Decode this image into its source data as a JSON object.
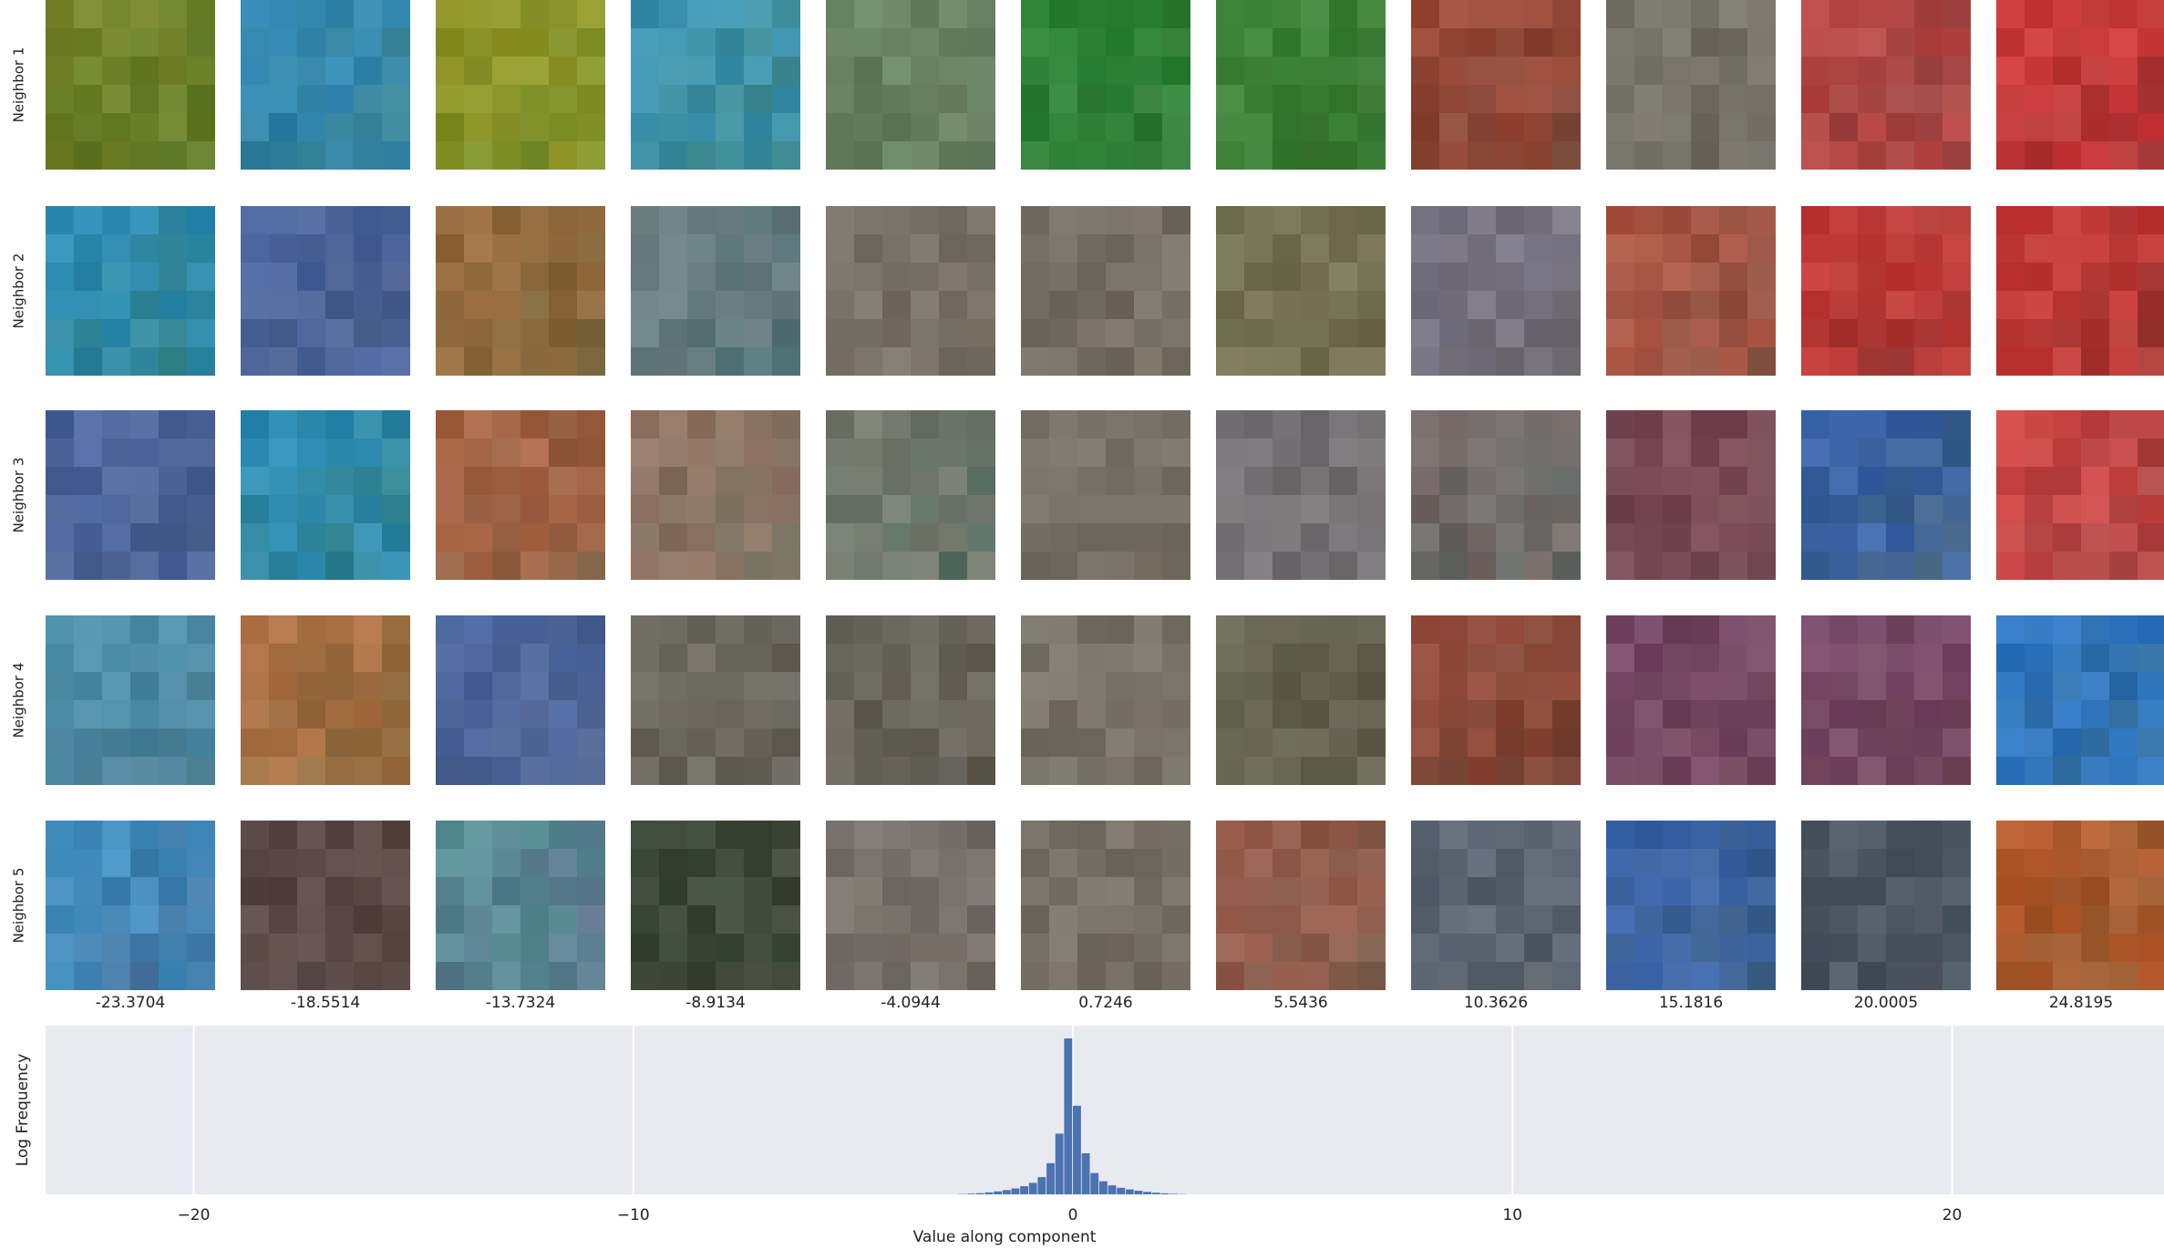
{
  "row_labels": [
    "Neighbor 1",
    "Neighbor 2",
    "Neighbor 3",
    "Neighbor 4",
    "Neighbor 5"
  ],
  "column_values": [
    "-23.3704",
    "-18.5514",
    "-13.7324",
    "-8.9134",
    "-4.0944",
    "0.7246",
    "5.5436",
    "10.3626",
    "15.1816",
    "20.0005",
    "24.8195"
  ],
  "tile_colors": [
    [
      "#8a8a2a",
      "#2e8fd0",
      "#a8a02a",
      "#3a9ccf",
      "#6a8a6a",
      "#2a8a3c",
      "#3b8c3a",
      "#b24a3a",
      "#7a7a72",
      "#d44a4a",
      "#e83a3e"
    ],
    [
      "#2b96d4",
      "#4a6aa8",
      "#b07040",
      "#80848a",
      "#7e7a70",
      "#7c786e",
      "#7a7a58",
      "#7a7a8a",
      "#c85a4a",
      "#e03a3a",
      "#e23a3a"
    ],
    [
      "#4a6aa8",
      "#2b96d4",
      "#c06848",
      "#a87a6a",
      "#8a8076",
      "#7c786e",
      "#7a7a80",
      "#8a7070",
      "#7a4a5a",
      "#3a6ac8",
      "#e8484a"
    ],
    [
      "#4a94b4",
      "#c87848",
      "#4a6aa8",
      "#6e6e66",
      "#6a6a62",
      "#7c786e",
      "#6a6a5a",
      "#a84a3a",
      "#7a4a6a",
      "#7a4a6a",
      "#2a7ae0"
    ],
    [
      "#40a8e0",
      "#5a4a4a",
      "#5aa8a0",
      "#3a4a3a",
      "#7a7672",
      "#7c786e",
      "#b06050",
      "#5a6a7a",
      "#3a6ac8",
      "#4a5a6a",
      "#d06030"
    ]
  ],
  "chart_data": {
    "type": "bar",
    "xlabel": "Value along component",
    "ylabel": "Log Frequency",
    "xlim": [
      -23.37,
      24.82
    ],
    "xticks": [
      "−20",
      "−10",
      "0",
      "10",
      "20"
    ],
    "grid": true,
    "background": "#e9e9f2",
    "bar_color": "#4c72b0",
    "bins": [
      {
        "x": -2.5,
        "y": 0.2
      },
      {
        "x": -2.3,
        "y": 0.4
      },
      {
        "x": -2.1,
        "y": 0.7
      },
      {
        "x": -1.9,
        "y": 1.2
      },
      {
        "x": -1.7,
        "y": 1.8
      },
      {
        "x": -1.5,
        "y": 2.6
      },
      {
        "x": -1.3,
        "y": 3.6
      },
      {
        "x": -1.1,
        "y": 5.0
      },
      {
        "x": -0.9,
        "y": 7.0
      },
      {
        "x": -0.7,
        "y": 10.5
      },
      {
        "x": -0.5,
        "y": 19.0
      },
      {
        "x": -0.3,
        "y": 37.0
      },
      {
        "x": -0.1,
        "y": 95.0
      },
      {
        "x": 0.1,
        "y": 54.0
      },
      {
        "x": 0.3,
        "y": 25.0
      },
      {
        "x": 0.5,
        "y": 13.0
      },
      {
        "x": 0.7,
        "y": 8.0
      },
      {
        "x": 0.9,
        "y": 5.5
      },
      {
        "x": 1.1,
        "y": 4.0
      },
      {
        "x": 1.3,
        "y": 3.0
      },
      {
        "x": 1.5,
        "y": 2.2
      },
      {
        "x": 1.7,
        "y": 1.5
      },
      {
        "x": 1.9,
        "y": 1.0
      },
      {
        "x": 2.1,
        "y": 0.6
      },
      {
        "x": 2.3,
        "y": 0.3
      },
      {
        "x": 2.5,
        "y": 0.15
      }
    ],
    "ymax": 100
  }
}
